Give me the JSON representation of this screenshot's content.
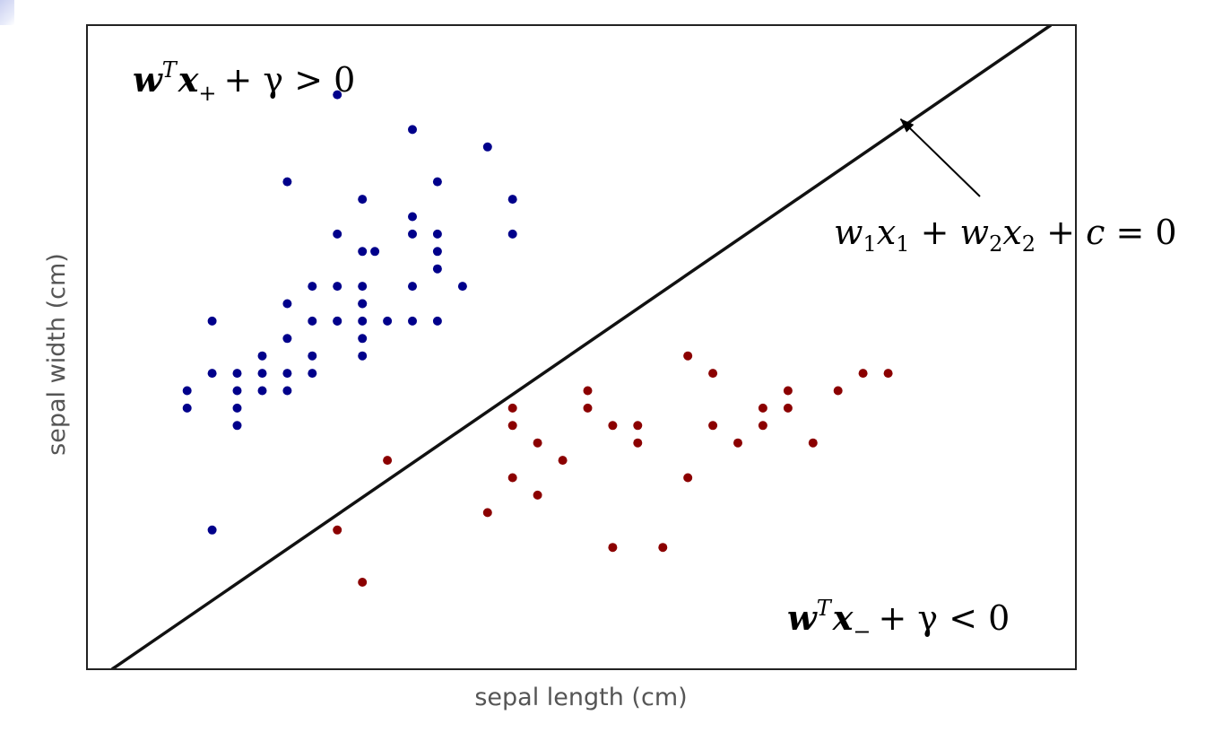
{
  "chart_data": {
    "type": "scatter",
    "title": "",
    "xlabel": "sepal length (cm)",
    "ylabel": "sepal width (cm)",
    "xlim": [
      4.2,
      8.15
    ],
    "ylim": [
      1.9,
      3.75
    ],
    "grid": false,
    "ticks_shown": false,
    "series": [
      {
        "color": "#00008b",
        "points": [
          [
            5.2,
            3.55
          ],
          [
            5.5,
            3.45
          ],
          [
            5.6,
            3.3
          ],
          [
            5.3,
            3.25
          ],
          [
            5.5,
            3.2
          ],
          [
            5.0,
            3.3
          ],
          [
            5.8,
            3.4
          ],
          [
            5.9,
            3.25
          ],
          [
            5.9,
            3.15
          ],
          [
            5.6,
            3.15
          ],
          [
            5.2,
            3.15
          ],
          [
            5.5,
            3.15
          ],
          [
            5.35,
            3.1
          ],
          [
            5.6,
            3.1
          ],
          [
            5.6,
            3.05
          ],
          [
            5.1,
            3.0
          ],
          [
            5.2,
            3.0
          ],
          [
            5.3,
            3.0
          ],
          [
            5.5,
            3.0
          ],
          [
            5.7,
            3.0
          ],
          [
            5.0,
            2.95
          ],
          [
            5.3,
            2.95
          ],
          [
            5.1,
            2.9
          ],
          [
            5.2,
            2.9
          ],
          [
            5.3,
            2.9
          ],
          [
            5.4,
            2.9
          ],
          [
            5.5,
            2.9
          ],
          [
            5.6,
            2.9
          ],
          [
            4.7,
            2.9
          ],
          [
            5.0,
            2.85
          ],
          [
            4.9,
            2.8
          ],
          [
            5.1,
            2.8
          ],
          [
            5.0,
            2.75
          ],
          [
            4.9,
            2.7
          ],
          [
            5.3,
            2.8
          ],
          [
            5.1,
            2.75
          ],
          [
            5.0,
            2.7
          ],
          [
            4.6,
            2.7
          ],
          [
            4.8,
            2.7
          ],
          [
            4.8,
            2.6
          ],
          [
            4.8,
            2.65
          ],
          [
            5.3,
            2.85
          ],
          [
            5.3,
            2.95
          ],
          [
            4.7,
            2.75
          ],
          [
            4.9,
            2.75
          ],
          [
            4.8,
            2.75
          ],
          [
            4.6,
            2.65
          ],
          [
            5.2,
            2.9
          ],
          [
            4.7,
            2.3
          ],
          [
            5.3,
            3.1
          ]
        ]
      },
      {
        "color": "#8b0000",
        "points": [
          [
            5.2,
            2.3
          ],
          [
            5.3,
            2.15
          ],
          [
            5.4,
            2.5
          ],
          [
            5.8,
            2.35
          ],
          [
            5.9,
            2.45
          ],
          [
            5.9,
            2.65
          ],
          [
            5.9,
            2.6
          ],
          [
            6.0,
            2.55
          ],
          [
            6.0,
            2.4
          ],
          [
            6.1,
            2.5
          ],
          [
            6.2,
            2.7
          ],
          [
            6.2,
            2.65
          ],
          [
            6.3,
            2.6
          ],
          [
            6.3,
            2.25
          ],
          [
            6.4,
            2.6
          ],
          [
            6.4,
            2.55
          ],
          [
            6.5,
            2.25
          ],
          [
            6.6,
            2.45
          ],
          [
            6.6,
            2.8
          ],
          [
            6.7,
            2.75
          ],
          [
            6.7,
            2.6
          ],
          [
            6.8,
            2.55
          ],
          [
            6.9,
            2.6
          ],
          [
            6.9,
            2.65
          ],
          [
            7.0,
            2.7
          ],
          [
            7.0,
            2.65
          ],
          [
            7.1,
            2.55
          ],
          [
            7.2,
            2.7
          ],
          [
            7.3,
            2.75
          ],
          [
            7.4,
            2.75
          ]
        ]
      }
    ],
    "decision_line": {
      "color": "#111111",
      "points": [
        [
          4.3,
          1.9
        ],
        [
          8.05,
          3.75
        ]
      ]
    },
    "annotations": {
      "positive_region": {
        "w": "w",
        "T": "T",
        "x": "x",
        "sub": "+",
        "rest": "+ γ > 0"
      },
      "negative_region": {
        "w": "w",
        "T": "T",
        "x": "x",
        "sub": "−",
        "rest": "+ γ < 0"
      },
      "line_equation": {
        "w1": "w",
        "s1": "1",
        "x1": "x",
        "s2": "1",
        "plus1": " + ",
        "w2": "w",
        "s3": "2",
        "x2": "x",
        "s4": "2",
        "plus2": " + ",
        "c": "c",
        "eq": " = 0"
      },
      "arrow_target": [
        7.45,
        3.48
      ]
    }
  }
}
